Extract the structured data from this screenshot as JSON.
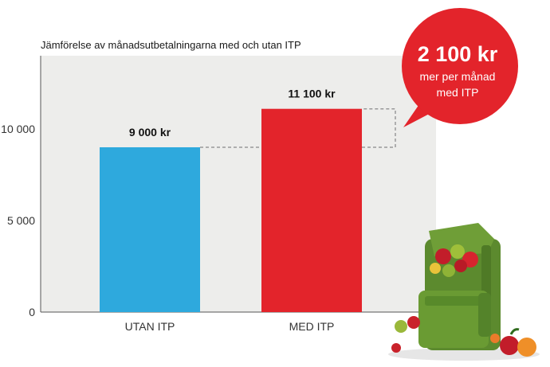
{
  "chart_data": {
    "type": "bar",
    "title": "Jämförelse av månadsutbetalningarna med och utan ITP",
    "categories": [
      "UTAN ITP",
      "MED ITP"
    ],
    "values": [
      9000,
      11100
    ],
    "value_labels": [
      "9 000 kr",
      "11 100 kr"
    ],
    "colors": [
      "#2ea9dd",
      "#e3242b"
    ],
    "yticks": [
      0,
      5000,
      10000
    ],
    "ytick_labels": [
      "0",
      "5 000",
      "10 000"
    ],
    "ylim": [
      0,
      14000
    ],
    "xlabel": "",
    "ylabel": "",
    "grid": false,
    "annotation": {
      "amount": "2 100 kr",
      "line1": "mer per månad",
      "line2": "med ITP",
      "color": "#e3242b"
    }
  },
  "illustration": {
    "icon": "backpack-with-apples-icon"
  }
}
